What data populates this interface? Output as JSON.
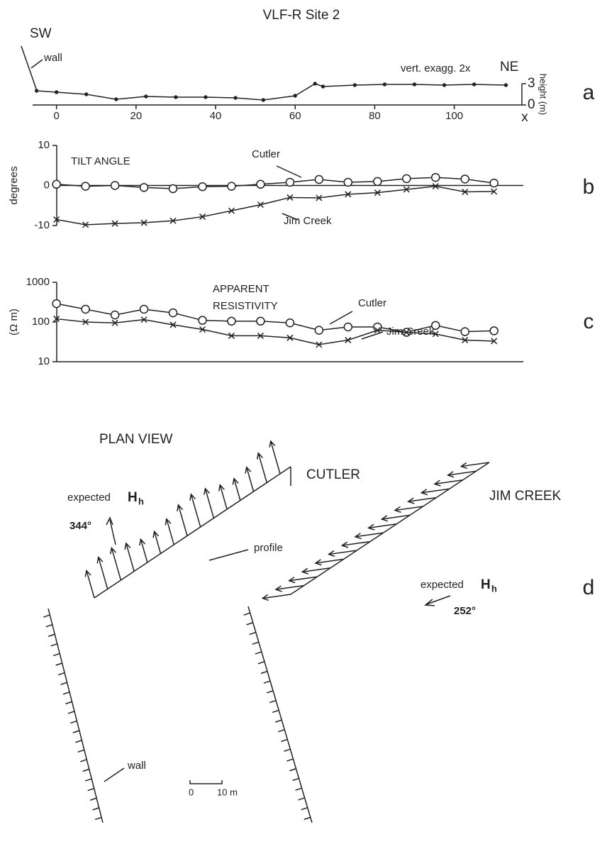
{
  "chart_data": [
    {
      "type": "line",
      "title": "VLF-R  Site 2",
      "panel": "a",
      "annotations": [
        "SW",
        "NE",
        "wall",
        "vert. exagg. 2x"
      ],
      "x": [
        -5,
        0,
        7.5,
        15,
        22.5,
        30,
        37.5,
        45,
        52,
        60,
        65,
        67,
        75,
        82.5,
        90,
        97.5,
        105,
        113
      ],
      "series": [
        {
          "name": "height",
          "color": "#222222",
          "marker": "dot",
          "values": [
            2.0,
            1.8,
            1.5,
            0.8,
            1.2,
            1.1,
            1.1,
            1.0,
            0.7,
            1.3,
            3.0,
            2.6,
            2.8,
            2.9,
            2.9,
            2.8,
            2.9,
            2.8
          ]
        }
      ],
      "xlim": [
        -6,
        117
      ],
      "xticks": [
        0,
        20,
        40,
        60,
        80,
        100
      ],
      "x_label": "x",
      "ylim": [
        0,
        3
      ],
      "yticks": [
        0,
        3
      ],
      "y_label": "height (m)"
    },
    {
      "type": "line",
      "panel": "b",
      "annotations": [
        "TILT ANGLE"
      ],
      "x": [
        0,
        7.3,
        14.7,
        22,
        29.3,
        36.7,
        44,
        51.3,
        58.7,
        66,
        73.3,
        80.7,
        88,
        95.3,
        102.7,
        110
      ],
      "series": [
        {
          "name": "Cutler",
          "color": "#222222",
          "marker": "o",
          "values": [
            0.3,
            -0.2,
            0,
            -0.5,
            -0.8,
            -0.3,
            -0.2,
            0.3,
            0.8,
            1.5,
            0.8,
            1,
            1.7,
            2,
            1.6,
            0.6
          ]
        },
        {
          "name": "Jim Creek",
          "color": "#222222",
          "marker": "x",
          "values": [
            -8.5,
            -9.8,
            -9.5,
            -9.3,
            -8.8,
            -7.8,
            -6.3,
            -4.8,
            -3,
            -3.1,
            -2.2,
            -1.8,
            -1,
            -0.2,
            -1.6,
            -1.5
          ]
        }
      ],
      "xlim": [
        -6,
        117
      ],
      "ylim": [
        -10,
        10
      ],
      "yticks": [
        -10,
        0,
        10
      ],
      "y_label": "degrees"
    },
    {
      "type": "line",
      "panel": "c",
      "annotations": [
        "APPARENT",
        "RESISTIVITY"
      ],
      "x": [
        0,
        7.3,
        14.7,
        22,
        29.3,
        36.7,
        44,
        51.3,
        58.7,
        66,
        73.3,
        80.7,
        88,
        95.3,
        102.7,
        110
      ],
      "series": [
        {
          "name": "Cutler",
          "color": "#222222",
          "marker": "o",
          "values": [
            290,
            210,
            150,
            210,
            170,
            110,
            105,
            105,
            95,
            62,
            75,
            75,
            55,
            82,
            57,
            60
          ]
        },
        {
          "name": "Jim Creek",
          "color": "#222222",
          "marker": "x",
          "values": [
            120,
            100,
            95,
            115,
            85,
            65,
            45,
            45,
            40,
            27,
            35,
            62,
            55,
            50,
            35,
            33
          ]
        }
      ],
      "xlim": [
        -6,
        117
      ],
      "ylim": [
        10,
        1000
      ],
      "yscale": "log",
      "yticks": [
        10,
        100,
        1000
      ],
      "y_label": "(Ω m)"
    }
  ],
  "plan_view": {
    "panel": "d",
    "title": "PLAN VIEW",
    "cutler": "CUTLER",
    "jim_creek": "JIM CREEK",
    "expected": "expected",
    "h": "H",
    "h_sub": "h",
    "cutler_angle": "344°",
    "jim_angle": "252°",
    "profile": "profile",
    "wall": "wall",
    "scale_zero": "0",
    "scale_len": "10 m"
  }
}
